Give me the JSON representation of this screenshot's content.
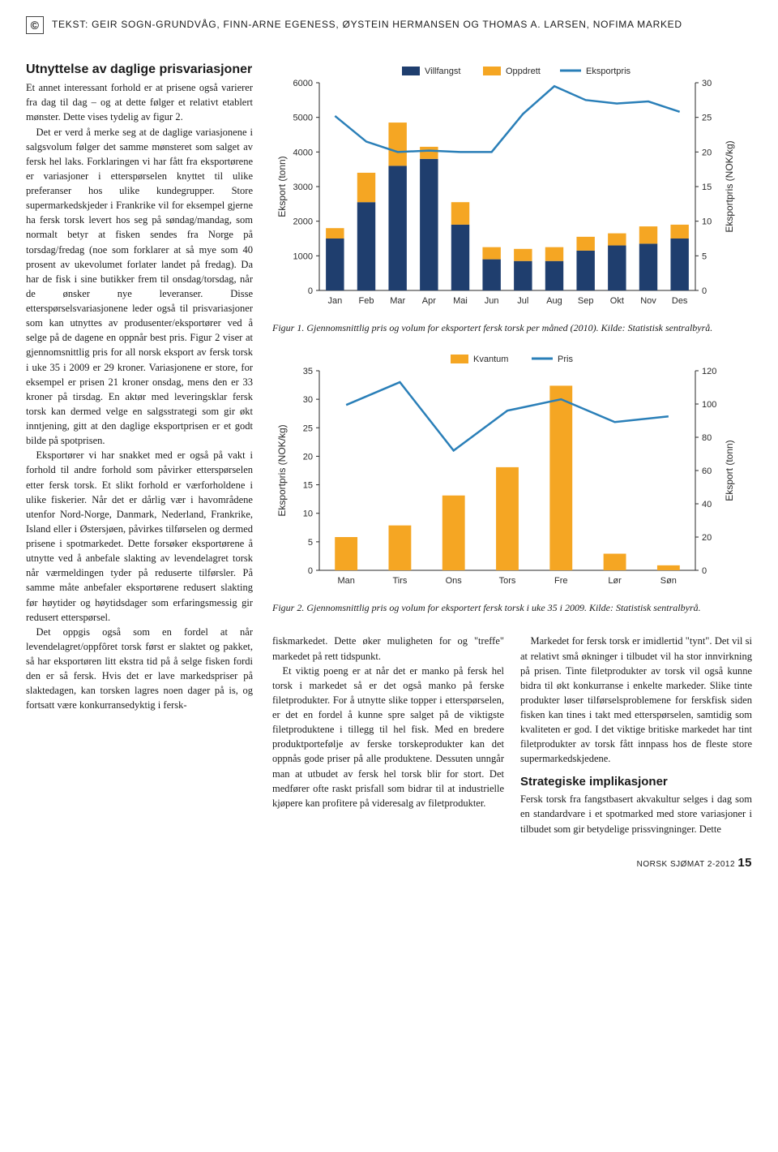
{
  "byline": {
    "prefix": "TEKST:",
    "authors": "GEIR SOGN-GRUNDVÅG, FINN-ARNE EGENESS, ØYSTEIN HERMANSEN OG THOMAS A. LARSEN, NOFIMA MARKED",
    "copyright_symbol": "©"
  },
  "article": {
    "heading": "Utnyttelse av daglige prisvariasjoner",
    "body": "Et annet interessant forhold er at prisene også varierer fra dag til dag – og at dette følger et relativt etablert mønster. Dette vises tydelig av figur 2.\nDet er verd å merke seg at de daglige variasjonene i salgsvolum følger det samme mønsteret som salget av fersk hel laks. Forklaringen vi har fått fra eksportørene er variasjoner i etterspørselen knyttet til ulike preferanser hos ulike kundegrupper. Store supermarkedskjeder i Frankrike vil for eksempel gjerne ha fersk torsk levert hos seg på søndag/mandag, som normalt betyr at fisken sendes fra Norge på torsdag/fredag (noe som forklarer at så mye som 40 prosent av ukevolumet forlater landet på fredag). Da har de fisk i sine butikker frem til onsdag/torsdag, når de ønsker nye leveranser. Disse etterspørselsvariasjonene leder også til prisvariasjoner som kan utnyttes av produsenter/eksportører ved å selge på de dagene en oppnår best pris. Figur 2 viser at gjennomsnittlig pris for all norsk eksport av fersk torsk i uke 35 i 2009 er 29 kroner. Variasjonene er store, for eksempel er prisen 21 kroner onsdag, mens den er 33 kroner på tirsdag. En aktør med leveringsklar fersk torsk kan dermed velge en salgsstrategi som gir økt inntjening, gitt at den daglige eksportprisen er et godt bilde på spotprisen.\nEksportører vi har snakket med er også på vakt i forhold til andre forhold som påvirker etterspørselen etter fersk torsk. Et slikt forhold er værforholdene i ulike fiskerier. Når det er dårlig vær i havområdene utenfor Nord-Norge, Danmark, Nederland, Frankrike, Island eller i Østersjøen, påvirkes tilførselen og dermed prisene i spotmarkedet. Dette forsøker eksportørene å utnytte ved å anbefale slakting av levendelagret torsk når værmeldingen tyder på reduserte tilførsler. På samme måte anbefaler eksportørene redusert slakting før høytider og høytidsdager som erfaringsmessig gir redusert etterspørsel.\nDet oppgis også som en fordel at når levendelagret/oppfôret torsk først er slaktet og pakket, så har eksportøren litt ekstra tid på å selge fisken fordi den er så fersk. Hvis det er lave markedspriser på slaktedagen, kan torsken lagres noen dager på is, og fortsatt være konkurransedyktig i fersk-"
  },
  "chart1": {
    "type": "bar+line-dual-axis",
    "legend": {
      "series1": "Villfangst",
      "series2": "Oppdrett",
      "series3": "Eksportpris"
    },
    "categories": [
      "Jan",
      "Feb",
      "Mar",
      "Apr",
      "Mai",
      "Jun",
      "Jul",
      "Aug",
      "Sep",
      "Okt",
      "Nov",
      "Des"
    ],
    "villfangst": [
      1500,
      2550,
      3600,
      3800,
      1900,
      900,
      850,
      850,
      1150,
      1300,
      1350,
      1500
    ],
    "oppdrett": [
      300,
      850,
      1250,
      350,
      650,
      350,
      350,
      400,
      400,
      350,
      500,
      400
    ],
    "eksportpris": [
      25.2,
      21.5,
      20.0,
      20.2,
      20.0,
      20.0,
      25.5,
      29.5,
      27.5,
      27.0,
      27.3,
      25.8
    ],
    "y_left": {
      "label": "Eksport (tonn)",
      "min": 0,
      "max": 6000,
      "step": 1000
    },
    "y_right": {
      "label": "Eksportpris (NOK/kg)",
      "min": 0,
      "max": 30,
      "step": 5
    },
    "colors": {
      "villfangst": "#1f3e6e",
      "oppdrett": "#f5a623",
      "line": "#2a7fb8",
      "axis": "#2a2a2a",
      "grid": "#ffffff",
      "legend_line": "#2a7fb8"
    },
    "bar_width": 0.58,
    "caption": "Figur 1. Gjennomsnittlig pris og volum for eksportert fersk torsk per måned (2010). Kilde: Statistisk sentralbyrå."
  },
  "chart2": {
    "type": "bar+line-dual-axis",
    "legend": {
      "series1": "Kvantum",
      "series2": "Pris"
    },
    "categories": [
      "Man",
      "Tirs",
      "Ons",
      "Tors",
      "Fre",
      "Lør",
      "Søn"
    ],
    "kvantum": [
      20,
      27,
      45,
      62,
      111,
      10,
      3
    ],
    "pris": [
      29,
      33,
      21,
      28,
      30,
      26,
      27
    ],
    "y_left": {
      "label": "Eksportpris (NOK/kg)",
      "min": 0,
      "max": 35,
      "step": 5
    },
    "y_right": {
      "label": "Eksport (tonn)",
      "min": 0,
      "max": 120,
      "step": 20
    },
    "colors": {
      "bar": "#f5a623",
      "line": "#2a7fb8",
      "axis": "#2a2a2a"
    },
    "bar_width": 0.42,
    "caption": "Figur 2. Gjennomsnittlig pris og volum for eksportert fersk torsk i uke 35 i 2009. Kilde: Statistisk sentralbyrå."
  },
  "continuation": {
    "p1": "fiskmarkedet. Dette øker muligheten for og \"treffe\" markedet på rett tidspunkt.",
    "p2": "Et viktig poeng er at når det er manko på fersk hel torsk i markedet så er det også manko på ferske filetprodukter. For å utnytte slike topper i etterspørselen, er det en fordel å kunne spre salget på de viktigste filetproduktene i tillegg til hel fisk. Med en bredere produktportefølje av ferske torskeprodukter kan det oppnås gode priser på alle produktene. Dessuten unngår man at utbudet av fersk hel torsk blir for stort. Det medfører ofte raskt prisfall som bidrar til at industrielle kjøpere kan profitere på videresalg av filetprodukter.",
    "p3": "Markedet for fersk torsk er imidlertid \"tynt\". Det vil si at relativt små økninger i tilbudet vil ha stor innvirkning på prisen. Tinte filetprodukter av torsk vil også kunne bidra til økt konkurranse i enkelte markeder. Slike tinte produkter løser tilførselsproblemene for ferskfisk siden fisken kan tines i takt med etterspørselen, samtidig som kvaliteten er god. I det viktige britiske markedet har tint filetprodukter av torsk fått innpass hos de fleste store supermarkedskjedene.",
    "h3": "Strategiske implikasjoner",
    "p4": "Fersk torsk fra fangstbasert akvakultur selges i dag som en standardvare i et spotmarked med store variasjoner i tilbudet som gir betydelige prissvingninger. Dette"
  },
  "footer": {
    "mag": "NORSK SJØMAT 2-2012",
    "page": "15"
  }
}
